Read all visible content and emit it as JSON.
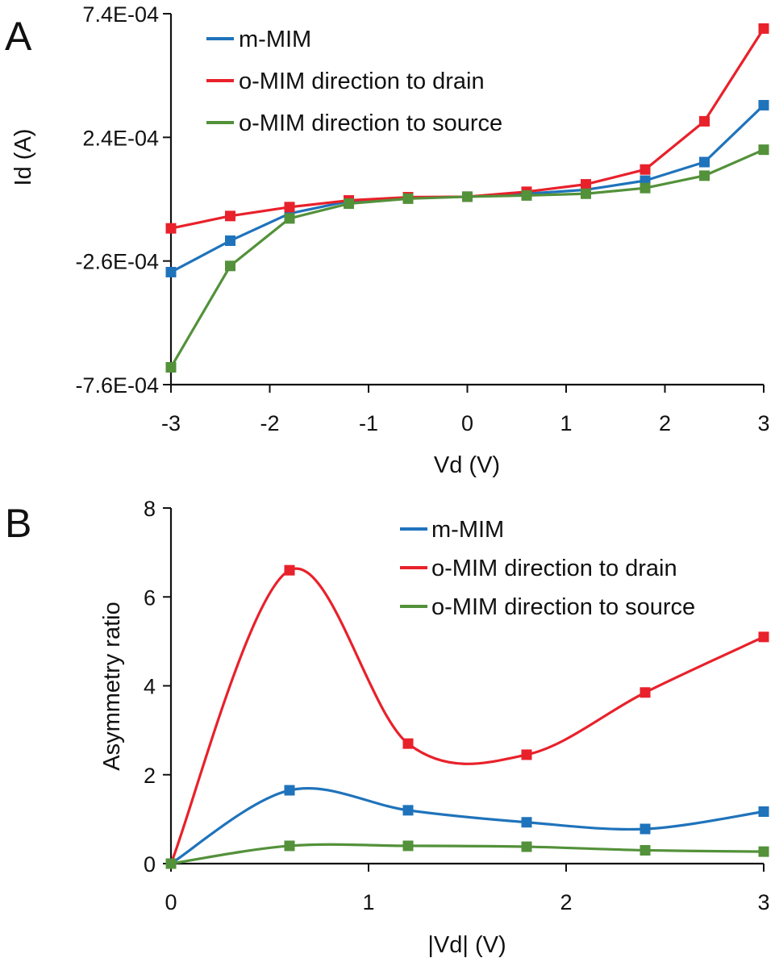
{
  "colors": {
    "blue": "#1f73bb",
    "red": "#e8212b",
    "green": "#53913a",
    "axis": "#111111"
  },
  "chart_data": [
    {
      "panel": "A",
      "type": "line",
      "xlabel": "Vd (V)",
      "ylabel": "Id (A)",
      "xlim": [
        -3,
        3
      ],
      "ylim": [
        -0.00076,
        0.00074
      ],
      "x_ticks": [
        -3,
        -2,
        -1,
        0,
        1,
        2,
        3
      ],
      "x_tick_labels": [
        "-3",
        "-2",
        "-1",
        "0",
        "1",
        "2",
        "3"
      ],
      "y_ticks": [
        -0.00076,
        -0.00026,
        0.00024,
        0.00074
      ],
      "y_tick_labels": [
        "-7.6E-04",
        "-2.6E-04",
        "2.4E-04",
        "7.4E-04"
      ],
      "x": [
        -3,
        -2.4,
        -1.8,
        -1.2,
        -0.6,
        0,
        0.6,
        1.2,
        1.8,
        2.4,
        3
      ],
      "series": [
        {
          "name": "m-MIM",
          "color": "#1f73bb",
          "values": [
            -0.000305,
            -0.000178,
            -6.8e-05,
            -1.8e-05,
            -5e-06,
            0,
            1.2e-05,
            2.8e-05,
            6.5e-05,
            0.00014,
            0.00037
          ]
        },
        {
          "name": "o-MIM direction to drain",
          "color": "#e8212b",
          "values": [
            -0.000128,
            -7.8e-05,
            -4.2e-05,
            -1.5e-05,
            -2e-06,
            0,
            2e-05,
            5e-05,
            0.00011,
            0.000305,
            0.00068
          ]
        },
        {
          "name": "o-MIM direction to source",
          "color": "#53913a",
          "values": [
            -0.00069,
            -0.00028,
            -8.8e-05,
            -2.8e-05,
            -8e-06,
            0,
            5e-06,
            1.2e-05,
            3.5e-05,
            8.5e-05,
            0.00019
          ]
        }
      ],
      "legend": "top-left",
      "grid": false
    },
    {
      "panel": "B",
      "type": "line",
      "xlabel": "|Vd| (V)",
      "ylabel": "Asymmetry ratio",
      "xlim": [
        0,
        3
      ],
      "ylim": [
        0,
        8
      ],
      "x_ticks": [
        0,
        1,
        2,
        3
      ],
      "x_tick_labels": [
        "0",
        "1",
        "2",
        "3"
      ],
      "y_ticks": [
        0,
        2,
        4,
        6,
        8
      ],
      "y_tick_labels": [
        "0",
        "2",
        "4",
        "6",
        "8"
      ],
      "x": [
        0,
        0.6,
        1.2,
        1.8,
        2.4,
        3
      ],
      "series": [
        {
          "name": "m-MIM",
          "color": "#1f73bb",
          "values": [
            0,
            1.65,
            1.2,
            0.93,
            0.78,
            1.17
          ]
        },
        {
          "name": "o-MIM direction to drain",
          "color": "#e8212b",
          "values": [
            0,
            6.6,
            2.7,
            2.45,
            3.85,
            5.1
          ]
        },
        {
          "name": "o-MIM direction to source",
          "color": "#53913a",
          "values": [
            0,
            0.4,
            0.4,
            0.38,
            0.3,
            0.27
          ]
        }
      ],
      "smooth": true,
      "legend": "top-right",
      "grid": false
    }
  ]
}
